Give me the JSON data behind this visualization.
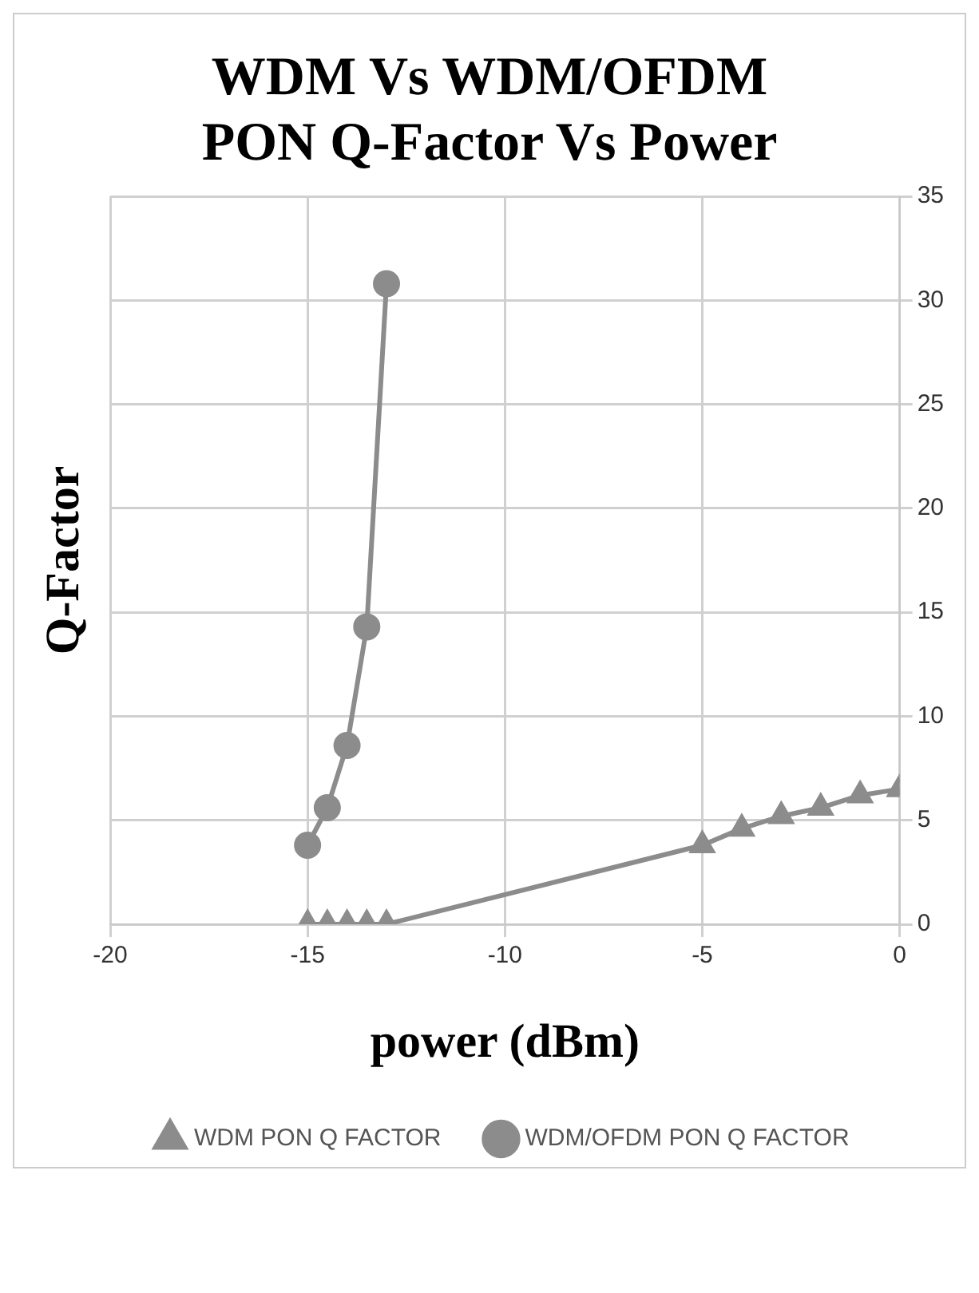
{
  "chart_data": {
    "type": "line",
    "title": "WDM Vs WDM/OFDM PON Q-Factor Vs Power",
    "xlabel": "power (dBm)",
    "ylabel": "Q-Factor",
    "xlim": [
      -20,
      0
    ],
    "xticks": [
      -20,
      -15,
      -10,
      -5,
      0
    ],
    "ylim": [
      0,
      35
    ],
    "yticks": [
      0,
      5,
      10,
      15,
      20,
      25,
      30,
      35
    ],
    "grid": true,
    "legend": "bottom",
    "series": [
      {
        "name": "WDM PON Q FACTOR",
        "color": "#8c8c8c",
        "marker": "triangle",
        "x": [
          -15,
          -14.5,
          -14,
          -13.5,
          -13,
          -5,
          -4,
          -3,
          -2,
          -1,
          0
        ],
        "values": [
          0,
          0,
          0,
          0,
          0,
          3.8,
          4.6,
          5.2,
          5.6,
          6.2,
          6.5
        ]
      },
      {
        "name": "WDM/OFDM PON Q FACTOR",
        "color": "#8c8c8c",
        "marker": "circle",
        "x": [
          -15,
          -14.5,
          -14,
          -13.5,
          -13
        ],
        "values": [
          3.8,
          5.6,
          8.6,
          14.3,
          30.8
        ]
      }
    ]
  }
}
